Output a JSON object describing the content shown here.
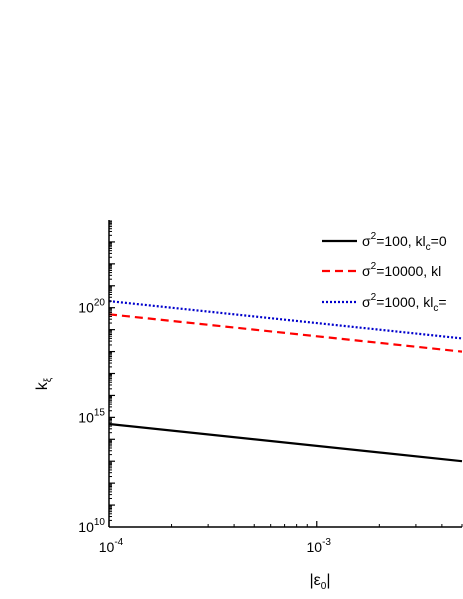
{
  "chart_data": {
    "type": "line",
    "x_scale": "log",
    "y_scale": "log",
    "xlim": [
      0.0001,
      0.005
    ],
    "ylim": [
      10000000000.0,
      1e+24
    ],
    "xlabel_main": "|ε",
    "xlabel_sub": "0",
    "xlabel_close": "|",
    "ylabel_main": "k",
    "ylabel_sub": "ξ",
    "xticks": [
      {
        "value": 0.0001,
        "base": "10",
        "exp": "-4"
      },
      {
        "value": 0.001,
        "base": "10",
        "exp": "-3"
      }
    ],
    "yticks": [
      {
        "value": 10000000000.0,
        "base": "10",
        "exp": "10"
      },
      {
        "value": 1000000000000000.0,
        "base": "10",
        "exp": "15"
      },
      {
        "value": 1e+20,
        "base": "10",
        "exp": "20"
      }
    ],
    "series": [
      {
        "name": "σ²=100, kl_c=0",
        "legend_parts": [
          "σ",
          "2",
          "=100, kl",
          "c",
          "=0"
        ],
        "color": "#000000",
        "style": "solid",
        "x": [
          0.0001,
          0.005
        ],
        "y": [
          500000000000000.0,
          10000000000000.0
        ]
      },
      {
        "name": "σ²=10000, kl",
        "legend_parts": [
          "σ",
          "2",
          "=10000, kl",
          "",
          ""
        ],
        "color": "#ff0000",
        "style": "dashed",
        "x": [
          0.0001,
          0.005
        ],
        "y": [
          5e+19,
          1e+18
        ]
      },
      {
        "name": "σ²=1000, kl_c=",
        "legend_parts": [
          "σ",
          "2",
          "=1000, kl",
          "c",
          "="
        ],
        "color": "#0000cc",
        "style": "dotted",
        "x": [
          0.0001,
          0.005
        ],
        "y": [
          2e+20,
          4e+18
        ]
      }
    ],
    "legend_position": "top-right",
    "grid": false
  }
}
